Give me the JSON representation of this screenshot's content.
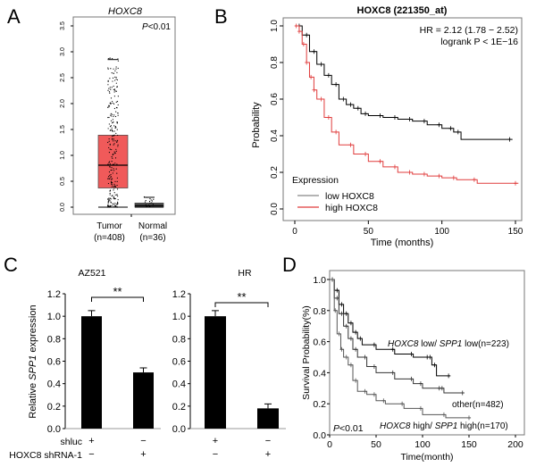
{
  "colors": {
    "red": "#e03c3c",
    "box_red": "#f05a5a",
    "black": "#000000",
    "grey": "#555555"
  },
  "panels": {
    "A": {
      "letter": "A"
    },
    "B": {
      "letter": "B"
    },
    "C": {
      "letter": "C"
    },
    "D": {
      "letter": "D"
    }
  },
  "chart_data": [
    {
      "panel": "A",
      "type": "box",
      "title": "HOXC8",
      "annotation": "P<0.01",
      "annotation_italic": "P",
      "annotation_rest": "<0.01",
      "ylim": [
        0,
        3.6
      ],
      "yticks": [
        "0.0",
        "0.5",
        "1.0",
        "1.5",
        "2.0",
        "2.5",
        "3.0",
        "3.5"
      ],
      "categories": [
        {
          "name": "Tumor",
          "n": "(n=408)",
          "min": 0.0,
          "q1": 0.37,
          "median": 0.81,
          "q3": 1.39,
          "max": 2.85,
          "color": "#f05a5a"
        },
        {
          "name": "Normal",
          "n": "(n=36)",
          "min": 0.0,
          "q1": 0.0,
          "median": 0.03,
          "q3": 0.08,
          "max": 0.19,
          "color": "#555555"
        }
      ]
    },
    {
      "panel": "B",
      "type": "line",
      "title": "HOXC8 (221350_at)",
      "xlabel": "Time (months)",
      "ylabel": "Probability",
      "xlim": [
        0,
        155
      ],
      "ylim": [
        0,
        1
      ],
      "xticks": [
        0,
        50,
        100,
        150
      ],
      "yticks": [
        "0.0",
        "0.2",
        "0.4",
        "0.6",
        "0.8",
        "1.0"
      ],
      "annotations": [
        "HR = 2.12 (1.78 − 2.52)",
        "logrank P < 1E−16"
      ],
      "legend_title": "Expression",
      "legend_position": "bottom-left",
      "series": [
        {
          "name": "low  HOXC8",
          "color": "#000000",
          "x": [
            0,
            5,
            10,
            15,
            20,
            25,
            30,
            35,
            40,
            45,
            50,
            60,
            70,
            80,
            90,
            100,
            108,
            113,
            148
          ],
          "y": [
            1,
            0.95,
            0.86,
            0.79,
            0.73,
            0.68,
            0.6,
            0.57,
            0.55,
            0.52,
            0.51,
            0.5,
            0.49,
            0.48,
            0.46,
            0.44,
            0.42,
            0.38,
            0.38
          ]
        },
        {
          "name": "high HOXC8",
          "color": "#e03c3c",
          "x": [
            0,
            3,
            5,
            8,
            10,
            13,
            15,
            20,
            25,
            30,
            40,
            50,
            60,
            70,
            80,
            90,
            100,
            110,
            124,
            152
          ],
          "y": [
            1,
            0.97,
            0.9,
            0.8,
            0.72,
            0.65,
            0.6,
            0.5,
            0.42,
            0.35,
            0.3,
            0.26,
            0.23,
            0.2,
            0.19,
            0.18,
            0.17,
            0.16,
            0.14,
            0.14
          ]
        }
      ]
    },
    {
      "panel": "C",
      "type": "bar",
      "ylabel_pre": "Relative ",
      "ylabel_italic": "SPP1",
      "ylabel_post": " expression",
      "ylim": [
        0,
        1.2
      ],
      "yticks": [
        "0.0",
        "0.2",
        "0.4",
        "0.6",
        "0.8",
        "1.0",
        "1.2"
      ],
      "row_labels": [
        "shluc",
        "HOXC8 shRNA-1"
      ],
      "conditions": [
        [
          "+",
          "−"
        ],
        [
          "−",
          "+"
        ]
      ],
      "significance": "**",
      "subplots": [
        {
          "title": "AZ521",
          "values": [
            1.0,
            0.5
          ],
          "errors": [
            0.05,
            0.04
          ]
        },
        {
          "title": "HR",
          "values": [
            1.0,
            0.18
          ],
          "errors": [
            0.05,
            0.04
          ]
        }
      ]
    },
    {
      "panel": "D",
      "type": "line",
      "xlabel": "Time(month)",
      "ylabel": "Survival Probability(%)",
      "xlim": [
        0,
        210
      ],
      "ylim": [
        0,
        1.05
      ],
      "xticks": [
        0,
        50,
        100,
        150,
        200
      ],
      "yticks": [
        "0.0",
        "0.2",
        "0.4",
        "0.6",
        "0.8",
        "1.0"
      ],
      "annotation_italic": "P",
      "annotation_rest": "<0.01",
      "series": [
        {
          "label_italic1": "HOXC8",
          "label_a": " low/ ",
          "label_italic2": "SPP1",
          "label_b": " low(n=223)",
          "color": "#000000",
          "x": [
            0,
            5,
            10,
            15,
            20,
            25,
            30,
            35,
            50,
            70,
            90,
            107,
            110,
            115,
            130
          ],
          "y": [
            1,
            0.93,
            0.84,
            0.78,
            0.72,
            0.66,
            0.62,
            0.58,
            0.55,
            0.52,
            0.5,
            0.5,
            0.45,
            0.38,
            0.38
          ]
        },
        {
          "label": "other(n=482)",
          "color": "#333333",
          "x": [
            0,
            5,
            10,
            15,
            20,
            25,
            30,
            40,
            50,
            70,
            90,
            100,
            120,
            123,
            145
          ],
          "y": [
            1,
            0.88,
            0.78,
            0.7,
            0.62,
            0.55,
            0.5,
            0.44,
            0.4,
            0.36,
            0.33,
            0.3,
            0.3,
            0.27,
            0.27
          ]
        },
        {
          "label_italic1": "HOXC8",
          "label_a": " high/ ",
          "label_italic2": "SPP1",
          "label_b": " high(n=170)",
          "color": "#555555",
          "x": [
            0,
            5,
            8,
            12,
            15,
            20,
            25,
            30,
            40,
            50,
            60,
            80,
            100,
            125,
            152
          ],
          "y": [
            1,
            0.8,
            0.65,
            0.55,
            0.5,
            0.45,
            0.35,
            0.28,
            0.26,
            0.22,
            0.2,
            0.17,
            0.13,
            0.11,
            0.11
          ]
        }
      ]
    }
  ]
}
